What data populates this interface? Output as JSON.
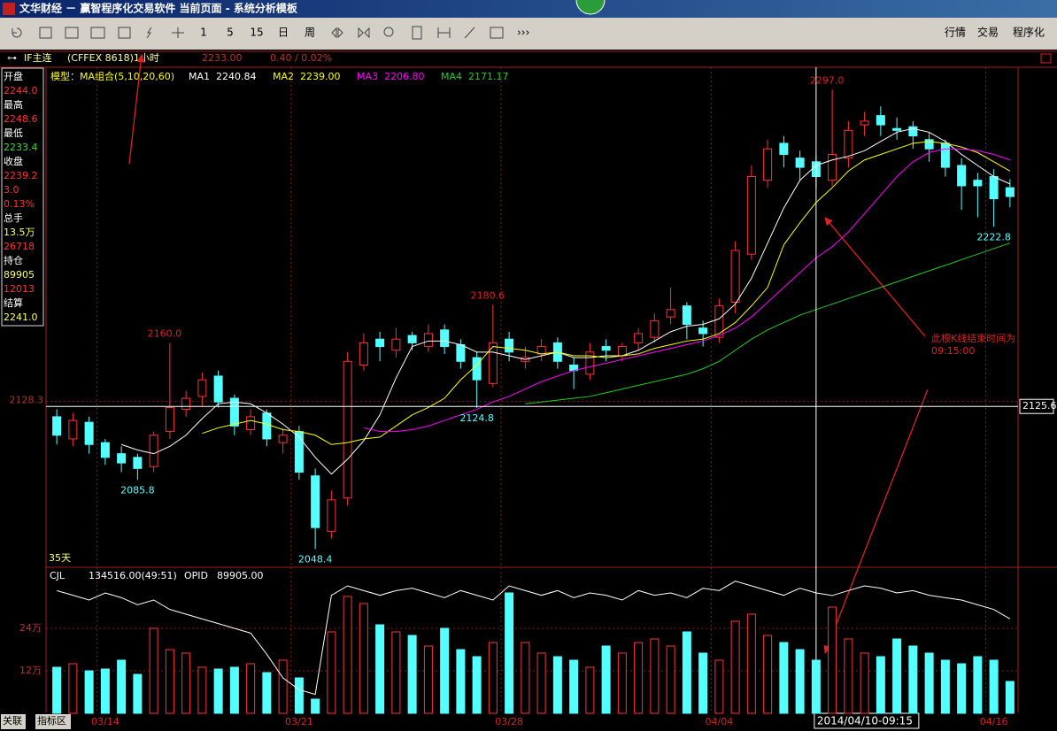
{
  "window": {
    "title": "文华财经 － 赢智程序化交易软件    当前页面 - 系统分析模板"
  },
  "toolbar": {
    "periods": [
      "1",
      "5",
      "15",
      "日",
      "周"
    ],
    "menus": [
      "行情",
      "交易",
      "程序化"
    ]
  },
  "header": {
    "symbol": "IF主连",
    "contract": "(CFFEX 8618)1小时",
    "price": "2233.00",
    "change": "0.40 / 0.02%",
    "model": "模型：MA组合(5,10,20,60)",
    "span": "35天"
  },
  "quote_panel": [
    {
      "label": "开盘",
      "value": "2244.0",
      "color": "#ff3232"
    },
    {
      "label": "最高",
      "value": "2248.6",
      "color": "#ff3232"
    },
    {
      "label": "最低",
      "value": "2233.4",
      "color": "#33dd33"
    },
    {
      "label": "收盘",
      "value": "2239.2",
      "color": "#ff3232"
    },
    {
      "value": "3.0",
      "color": "#ff3232"
    },
    {
      "value": "0.13%",
      "color": "#ff3232"
    },
    {
      "label": "总手",
      "value": "13.5万",
      "color": "#ffff66"
    },
    {
      "value": "26718",
      "color": "#ff3232"
    },
    {
      "label": "持仓",
      "value": "89905",
      "color": "#ffff66"
    },
    {
      "value": "12013",
      "color": "#ff3232"
    },
    {
      "label": "结算",
      "value": "2241.0",
      "color": "#ffff66"
    }
  ],
  "note": [
    "此根K线结束时间为",
    "09:15:00"
  ],
  "tabs": [
    "关联",
    "指标区"
  ],
  "chart_data": [
    {
      "type": "candlestick",
      "categories": [
        null,
        null,
        null,
        "03/14",
        null,
        null,
        null,
        null,
        null,
        null,
        null,
        null,
        null,
        null,
        null,
        "03/21",
        null,
        null,
        null,
        null,
        null,
        null,
        null,
        null,
        null,
        null,
        null,
        null,
        "03/28",
        null,
        null,
        null,
        null,
        null,
        null,
        null,
        null,
        null,
        null,
        null,
        null,
        "04/04",
        null,
        null,
        null,
        null,
        null,
        null,
        null,
        null,
        null,
        null,
        null,
        null,
        null,
        null,
        null,
        null,
        "04/16",
        null
      ],
      "open": [
        2120,
        2108,
        2117,
        2106,
        2100,
        2098,
        2093,
        2112,
        2124,
        2131,
        2142,
        2130,
        2113,
        2122,
        2106,
        2112,
        2088,
        2058,
        2076,
        2148,
        2162,
        2156,
        2164,
        2158,
        2167,
        2159,
        2152,
        2138,
        2162,
        2150,
        2154,
        2160,
        2148,
        2143,
        2158,
        2153,
        2160,
        2163,
        2174,
        2180,
        2168,
        2163,
        2182,
        2208,
        2248,
        2268,
        2260,
        2258,
        2248,
        2260,
        2278,
        2283,
        2276,
        2277,
        2270,
        2268,
        2256,
        2248,
        2250,
        2244
      ],
      "high": [
        2124,
        2122,
        2120,
        2108,
        2104,
        2100,
        2112,
        2160,
        2134,
        2144,
        2145,
        2132,
        2124,
        2124,
        2114,
        2115,
        2092,
        2080,
        2155,
        2165,
        2166,
        2168,
        2166,
        2170,
        2170,
        2162,
        2155,
        2180.6,
        2166,
        2158,
        2162,
        2163,
        2152,
        2160,
        2162,
        2160,
        2168,
        2176,
        2190,
        2182,
        2172,
        2184,
        2215,
        2256,
        2270,
        2272,
        2264,
        2262,
        2297,
        2280,
        2285,
        2288,
        2282,
        2280,
        2274,
        2270,
        2260,
        2252,
        2254,
        2248.6
      ],
      "low": [
        2105,
        2104,
        2100,
        2094,
        2090,
        2085.8,
        2090,
        2108,
        2120,
        2126,
        2125,
        2110,
        2110,
        2104,
        2100,
        2086,
        2048.4,
        2054,
        2072,
        2145,
        2150,
        2152,
        2156,
        2155,
        2154,
        2146,
        2124.8,
        2136,
        2150,
        2146,
        2150,
        2146,
        2135,
        2140,
        2150,
        2150,
        2156,
        2160,
        2170,
        2162,
        2158,
        2160,
        2176,
        2205,
        2244,
        2255,
        2248,
        2244,
        2245,
        2255,
        2272,
        2272,
        2270,
        2265,
        2258,
        2250,
        2232,
        2228,
        2222.8,
        2233.4
      ],
      "close": [
        2110,
        2118,
        2105,
        2098,
        2095,
        2092,
        2110,
        2125,
        2130,
        2140,
        2128,
        2115,
        2120,
        2108,
        2110,
        2090,
        2060,
        2075,
        2150,
        2160,
        2158,
        2162,
        2160,
        2165,
        2158,
        2150,
        2140,
        2160,
        2155,
        2152,
        2158,
        2150,
        2145,
        2155,
        2156,
        2158,
        2165,
        2172,
        2178,
        2170,
        2165,
        2180,
        2210,
        2250,
        2265,
        2262,
        2255,
        2250,
        2262,
        2275,
        2280,
        2278,
        2275,
        2272,
        2265,
        2255,
        2245,
        2245,
        2238,
        2239.2
      ],
      "up_color": "#ff3232",
      "down_color": "#54ffff",
      "series": [
        {
          "name": "MA1",
          "readout": "2240.84",
          "color": "#ffffff",
          "values": [
            null,
            null,
            null,
            null,
            2105,
            2102,
            2100,
            2104,
            2110,
            2119,
            2127,
            2128,
            2127,
            2122,
            2116,
            2109,
            2098,
            2089,
            2097,
            2107,
            2121,
            2141,
            2158,
            2161,
            2161,
            2159,
            2155,
            2155,
            2153,
            2151,
            2153,
            2155,
            2152,
            2152,
            2153,
            2153,
            2156,
            2161,
            2166,
            2169,
            2170,
            2173,
            2181,
            2195,
            2214,
            2233,
            2248,
            2256,
            2259,
            2261,
            2264,
            2269,
            2274,
            2276,
            2274,
            2269,
            2262,
            2256,
            2250,
            2246
          ]
        },
        {
          "name": "MA2",
          "readout": "2239.00",
          "color": "#ffff00",
          "values": [
            null,
            null,
            null,
            null,
            null,
            null,
            null,
            null,
            null,
            2111,
            2114,
            2116,
            2118,
            2116,
            2113,
            2112,
            2110,
            2105,
            2106,
            2108,
            2109,
            2115,
            2121,
            2125,
            2130,
            2140,
            2148,
            2158,
            2157,
            2156,
            2154,
            2155,
            2153,
            2153,
            2152,
            2153,
            2154,
            2157,
            2159,
            2161,
            2162,
            2165,
            2171,
            2180,
            2190,
            2213,
            2225,
            2236,
            2244,
            2253,
            2259,
            2262,
            2265,
            2268,
            2269,
            2268,
            2266,
            2263,
            2258,
            2253
          ]
        },
        {
          "name": "MA3",
          "readout": "2206.80",
          "color": "#ff00ff",
          "values": [
            null,
            null,
            null,
            null,
            null,
            null,
            null,
            null,
            null,
            null,
            null,
            null,
            null,
            null,
            null,
            null,
            null,
            null,
            null,
            2114,
            2112,
            2112,
            2113,
            2115,
            2118,
            2121,
            2124,
            2128,
            2131,
            2135,
            2139,
            2142,
            2145,
            2147,
            2149,
            2151,
            2153,
            2155,
            2157,
            2159,
            2161,
            2164,
            2168,
            2174,
            2182,
            2190,
            2198,
            2206,
            2212,
            2220,
            2230,
            2240,
            2250,
            2258,
            2263,
            2265,
            2265,
            2264,
            2262,
            2259
          ]
        },
        {
          "name": "MA4",
          "readout": "2171.17",
          "color": "#22cc22",
          "values": [
            null,
            null,
            null,
            null,
            null,
            null,
            null,
            null,
            null,
            null,
            null,
            null,
            null,
            null,
            null,
            null,
            null,
            null,
            null,
            null,
            null,
            null,
            null,
            null,
            null,
            null,
            null,
            null,
            null,
            2127,
            2128,
            2129,
            2130,
            2131,
            2133,
            2135,
            2137,
            2139,
            2141,
            2143,
            2146,
            2150,
            2156,
            2162,
            2167,
            2171,
            2175,
            2178,
            2181,
            2184,
            2187,
            2190,
            2193,
            2196,
            2199,
            2202,
            2205,
            2208,
            2211,
            2214
          ]
        }
      ],
      "annotations": [
        {
          "x": 7,
          "y": 2160,
          "text": "2160.0"
        },
        {
          "x": 5,
          "y": 2085.8,
          "text": "2085.8"
        },
        {
          "x": 16,
          "y": 2048.4,
          "text": "2048.4"
        },
        {
          "x": 26,
          "y": 2124.8,
          "text": "2124.8"
        },
        {
          "x": 27,
          "y": 2180.6,
          "text": "2180.6"
        },
        {
          "x": 48,
          "y": 2297,
          "text": "2297.0"
        },
        {
          "x": 58,
          "y": 2222.8,
          "text": "2222.8"
        }
      ],
      "crosshair": {
        "x": 47,
        "y": 2125.6,
        "time": "2014/04/10-09:15"
      },
      "ylim": [
        2039,
        2313
      ],
      "yticks": [
        2128.3
      ]
    },
    {
      "type": "bar",
      "name": "CJL",
      "readout": "134516.00(49:51)",
      "values": [
        130000,
        140000,
        120000,
        125000,
        150000,
        110000,
        240000,
        180000,
        170000,
        130000,
        125000,
        130000,
        140000,
        115000,
        150000,
        100000,
        40000,
        230000,
        330000,
        310000,
        250000,
        230000,
        220000,
        190000,
        240000,
        180000,
        160000,
        200000,
        340000,
        200000,
        170000,
        160000,
        150000,
        130000,
        190000,
        170000,
        200000,
        210000,
        190000,
        230000,
        170000,
        150000,
        260000,
        280000,
        220000,
        200000,
        180000,
        150000,
        300000,
        210000,
        170000,
        160000,
        210000,
        190000,
        170000,
        150000,
        140000,
        160000,
        150000,
        90000
      ],
      "ylim": [
        0,
        400000
      ],
      "yticks": [
        {
          "value": 120000,
          "label": "12万"
        },
        {
          "value": 240000,
          "label": "24万"
        }
      ],
      "y2lim": [
        40000,
        100000
      ],
      "series": [
        {
          "name": "OPID",
          "readout": "89905.00",
          "axis": "y2",
          "color": "#ffffff",
          "values": [
            92000,
            90000,
            88000,
            91000,
            89000,
            86000,
            88000,
            84000,
            82000,
            80000,
            78000,
            76000,
            74000,
            65000,
            55000,
            50000,
            48000,
            90000,
            94000,
            92000,
            90000,
            92000,
            93000,
            91000,
            89000,
            92000,
            90000,
            88000,
            94000,
            92000,
            90000,
            92000,
            89000,
            91000,
            90000,
            88000,
            92000,
            90000,
            91000,
            89000,
            93000,
            92000,
            96000,
            94000,
            92000,
            90000,
            93000,
            91000,
            89905,
            92000,
            94000,
            93000,
            91000,
            92000,
            90000,
            89000,
            88000,
            86000,
            84000,
            80000
          ]
        }
      ]
    }
  ]
}
